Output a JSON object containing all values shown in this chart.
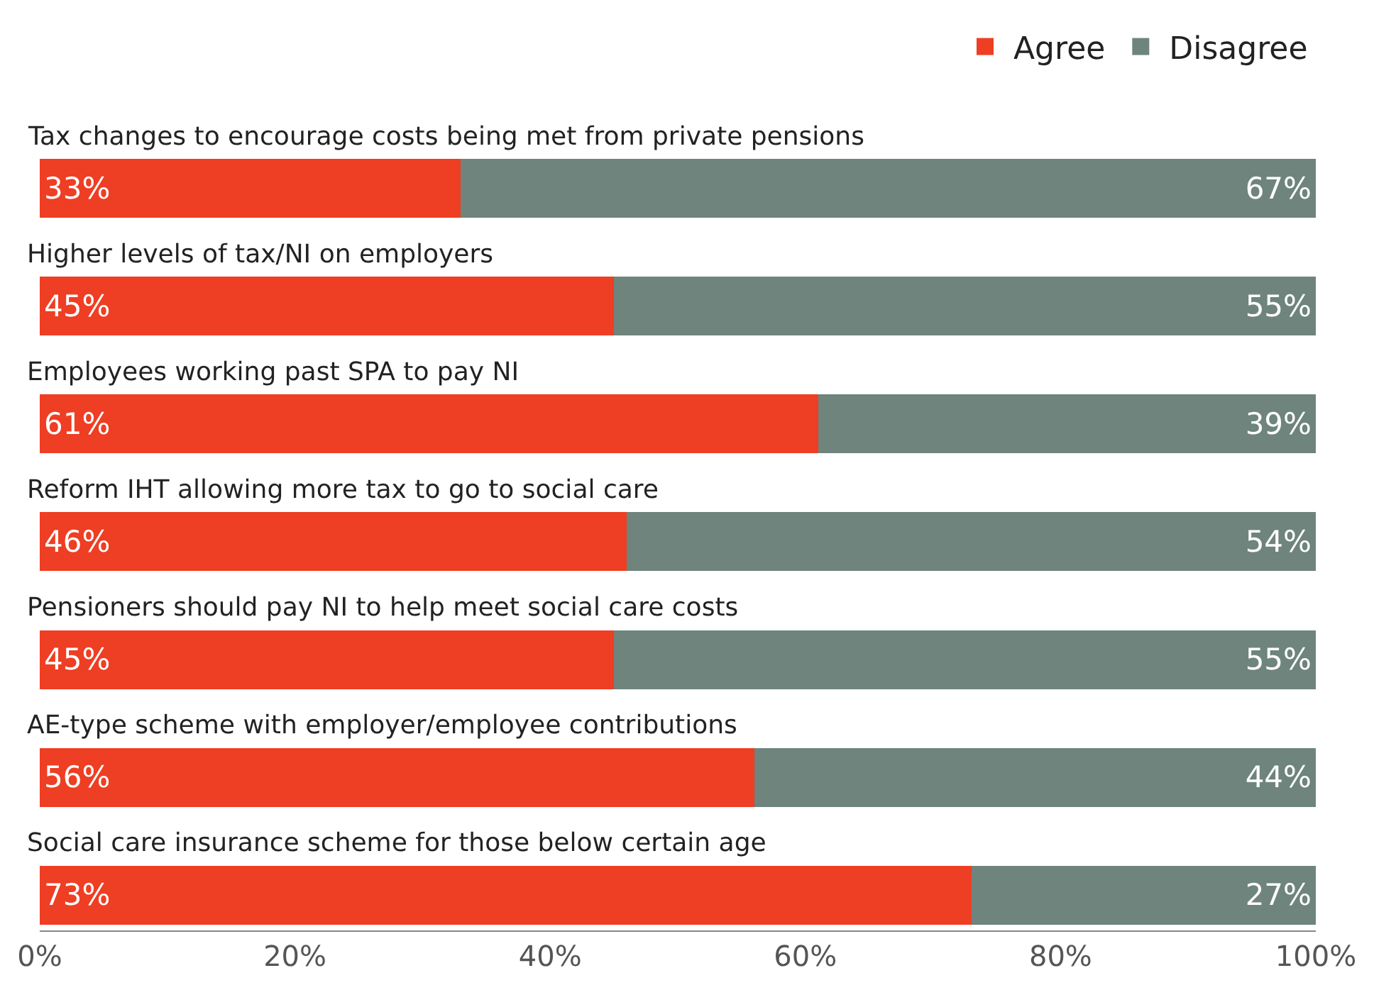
{
  "chart_data": {
    "type": "bar",
    "orientation": "horizontal",
    "stacked": true,
    "categories": [
      "Tax changes to encourage costs being met from private pensions",
      "Higher levels of tax/NI on employers",
      "Employees working past SPA to pay NI",
      "Reform IHT allowing more tax to go to social care",
      "Pensioners should pay NI to help meet social care costs",
      "AE-type scheme with employer/employee contributions",
      "Social care insurance scheme for those below certain age"
    ],
    "series": [
      {
        "name": "Agree",
        "color": "#ee3e23",
        "values": [
          33,
          45,
          61,
          46,
          45,
          56,
          73
        ],
        "value_labels": [
          "33%",
          "45%",
          "61%",
          "46%",
          "45%",
          "56%",
          "73%"
        ]
      },
      {
        "name": "Disagree",
        "color": "#6e847c",
        "values": [
          67,
          55,
          39,
          54,
          55,
          44,
          27
        ],
        "value_labels": [
          "67%",
          "55%",
          "39%",
          "54%",
          "55%",
          "44%",
          "27%"
        ]
      }
    ],
    "xlim": [
      0,
      100
    ],
    "xticks": [
      {
        "value": 0,
        "label": "0%"
      },
      {
        "value": 20,
        "label": "20%"
      },
      {
        "value": 40,
        "label": "40%"
      },
      {
        "value": 60,
        "label": "60%"
      },
      {
        "value": 80,
        "label": "80%"
      },
      {
        "value": 100,
        "label": "100%"
      }
    ],
    "grid": false,
    "legend": "top right"
  }
}
